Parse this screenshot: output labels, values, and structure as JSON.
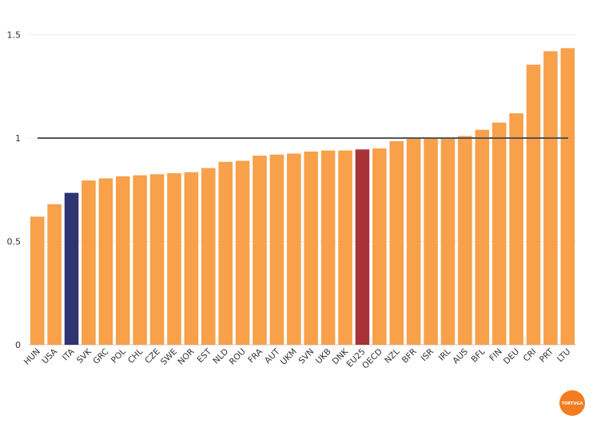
{
  "chart_data": {
    "type": "bar",
    "categories": [
      "HUN",
      "USA",
      "ITA",
      "SVK",
      "GRC",
      "POL",
      "CHL",
      "CZE",
      "SWE",
      "NOR",
      "EST",
      "NLD",
      "ROU",
      "FRA",
      "AUT",
      "UKM",
      "SVN",
      "UKB",
      "DNK",
      "EU25",
      "OECD",
      "NZL",
      "BFR",
      "ISR",
      "IRL",
      "AUS",
      "BFL",
      "FIN",
      "DEU",
      "CRI",
      "PRT",
      "LTU"
    ],
    "values": [
      0.62,
      0.68,
      0.735,
      0.795,
      0.805,
      0.815,
      0.82,
      0.825,
      0.83,
      0.835,
      0.855,
      0.885,
      0.89,
      0.915,
      0.92,
      0.925,
      0.935,
      0.94,
      0.94,
      0.945,
      0.95,
      0.985,
      1.0,
      1.0,
      1.0,
      1.01,
      1.04,
      1.075,
      1.12,
      1.355,
      1.42,
      1.435
    ],
    "highlight": {
      "ITA": "#2e3472",
      "EU25": "#a73338"
    },
    "bar_color": "#f8a04a",
    "reference_line": 1,
    "reference_color": "#555555",
    "yticks": [
      "0",
      "0.5",
      "1",
      "1.5"
    ],
    "ylim": [
      0,
      1.6
    ],
    "grid": true,
    "title": "",
    "xlabel": "",
    "ylabel": ""
  },
  "logo": {
    "text": "TORTUGA",
    "color": "#f47b20"
  }
}
